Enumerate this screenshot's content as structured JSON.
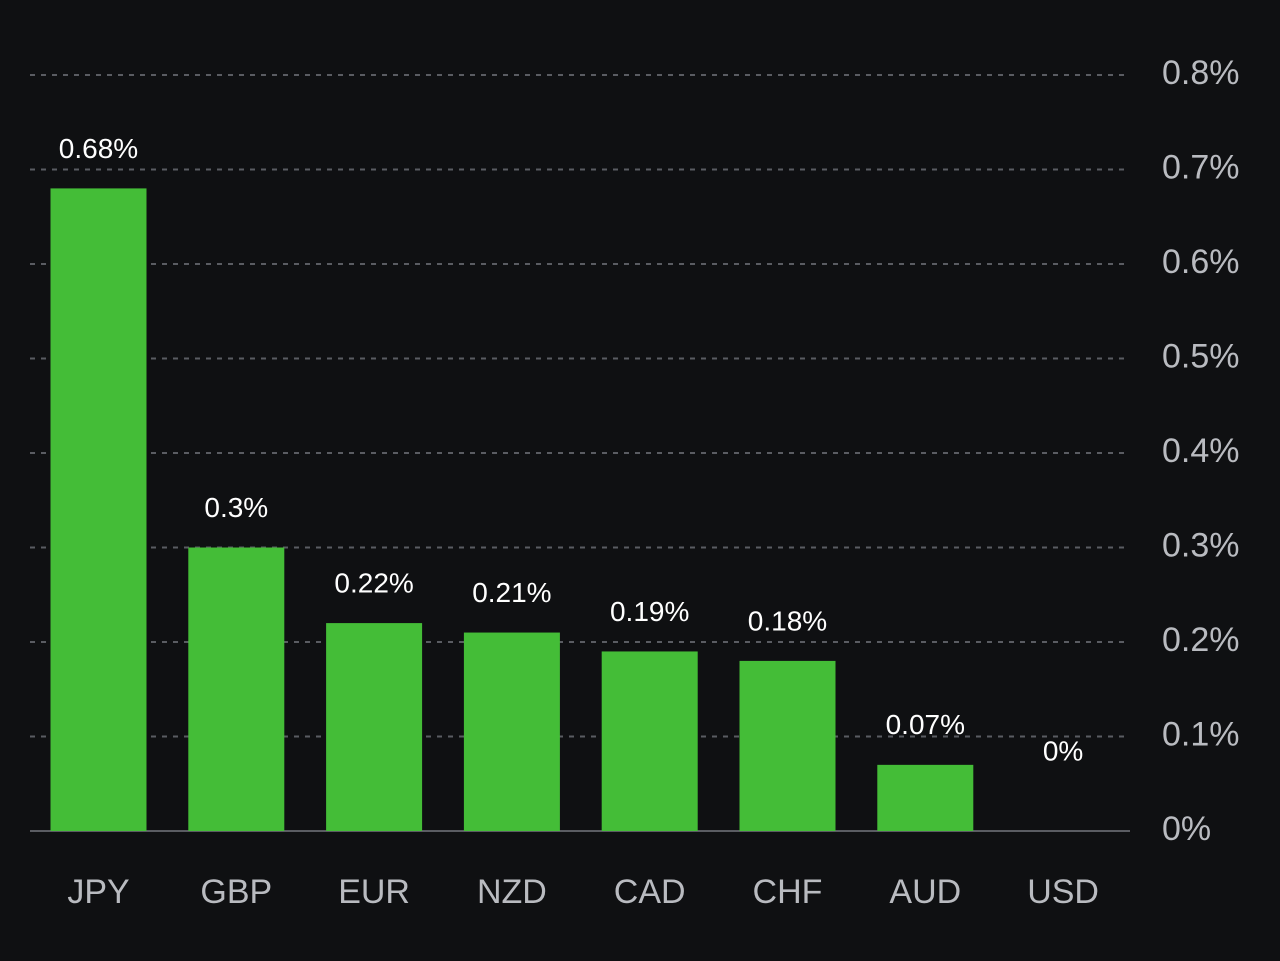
{
  "chart_data": {
    "type": "bar",
    "categories": [
      "JPY",
      "GBP",
      "EUR",
      "NZD",
      "CAD",
      "CHF",
      "AUD",
      "USD"
    ],
    "values": [
      0.68,
      0.3,
      0.22,
      0.21,
      0.19,
      0.18,
      0.07,
      0
    ],
    "data_labels": [
      "0.68%",
      "0.3%",
      "0.22%",
      "0.21%",
      "0.19%",
      "0.18%",
      "0.07%",
      "0%"
    ],
    "y_ticks": [
      0,
      0.1,
      0.2,
      0.3,
      0.4,
      0.5,
      0.6,
      0.7,
      0.8
    ],
    "y_tick_labels": [
      "0%",
      "0.1%",
      "0.2%",
      "0.3%",
      "0.4%",
      "0.5%",
      "0.6%",
      "0.7%",
      "0.8%"
    ],
    "ylim": [
      0,
      0.8
    ],
    "y_axis_position": "right",
    "grid": true,
    "colors": {
      "bar": "#44bd37",
      "background": "#0f1012",
      "grid": "#5a5c62",
      "tick_label": "#b9bbc0",
      "data_label": "#ffffff"
    }
  }
}
